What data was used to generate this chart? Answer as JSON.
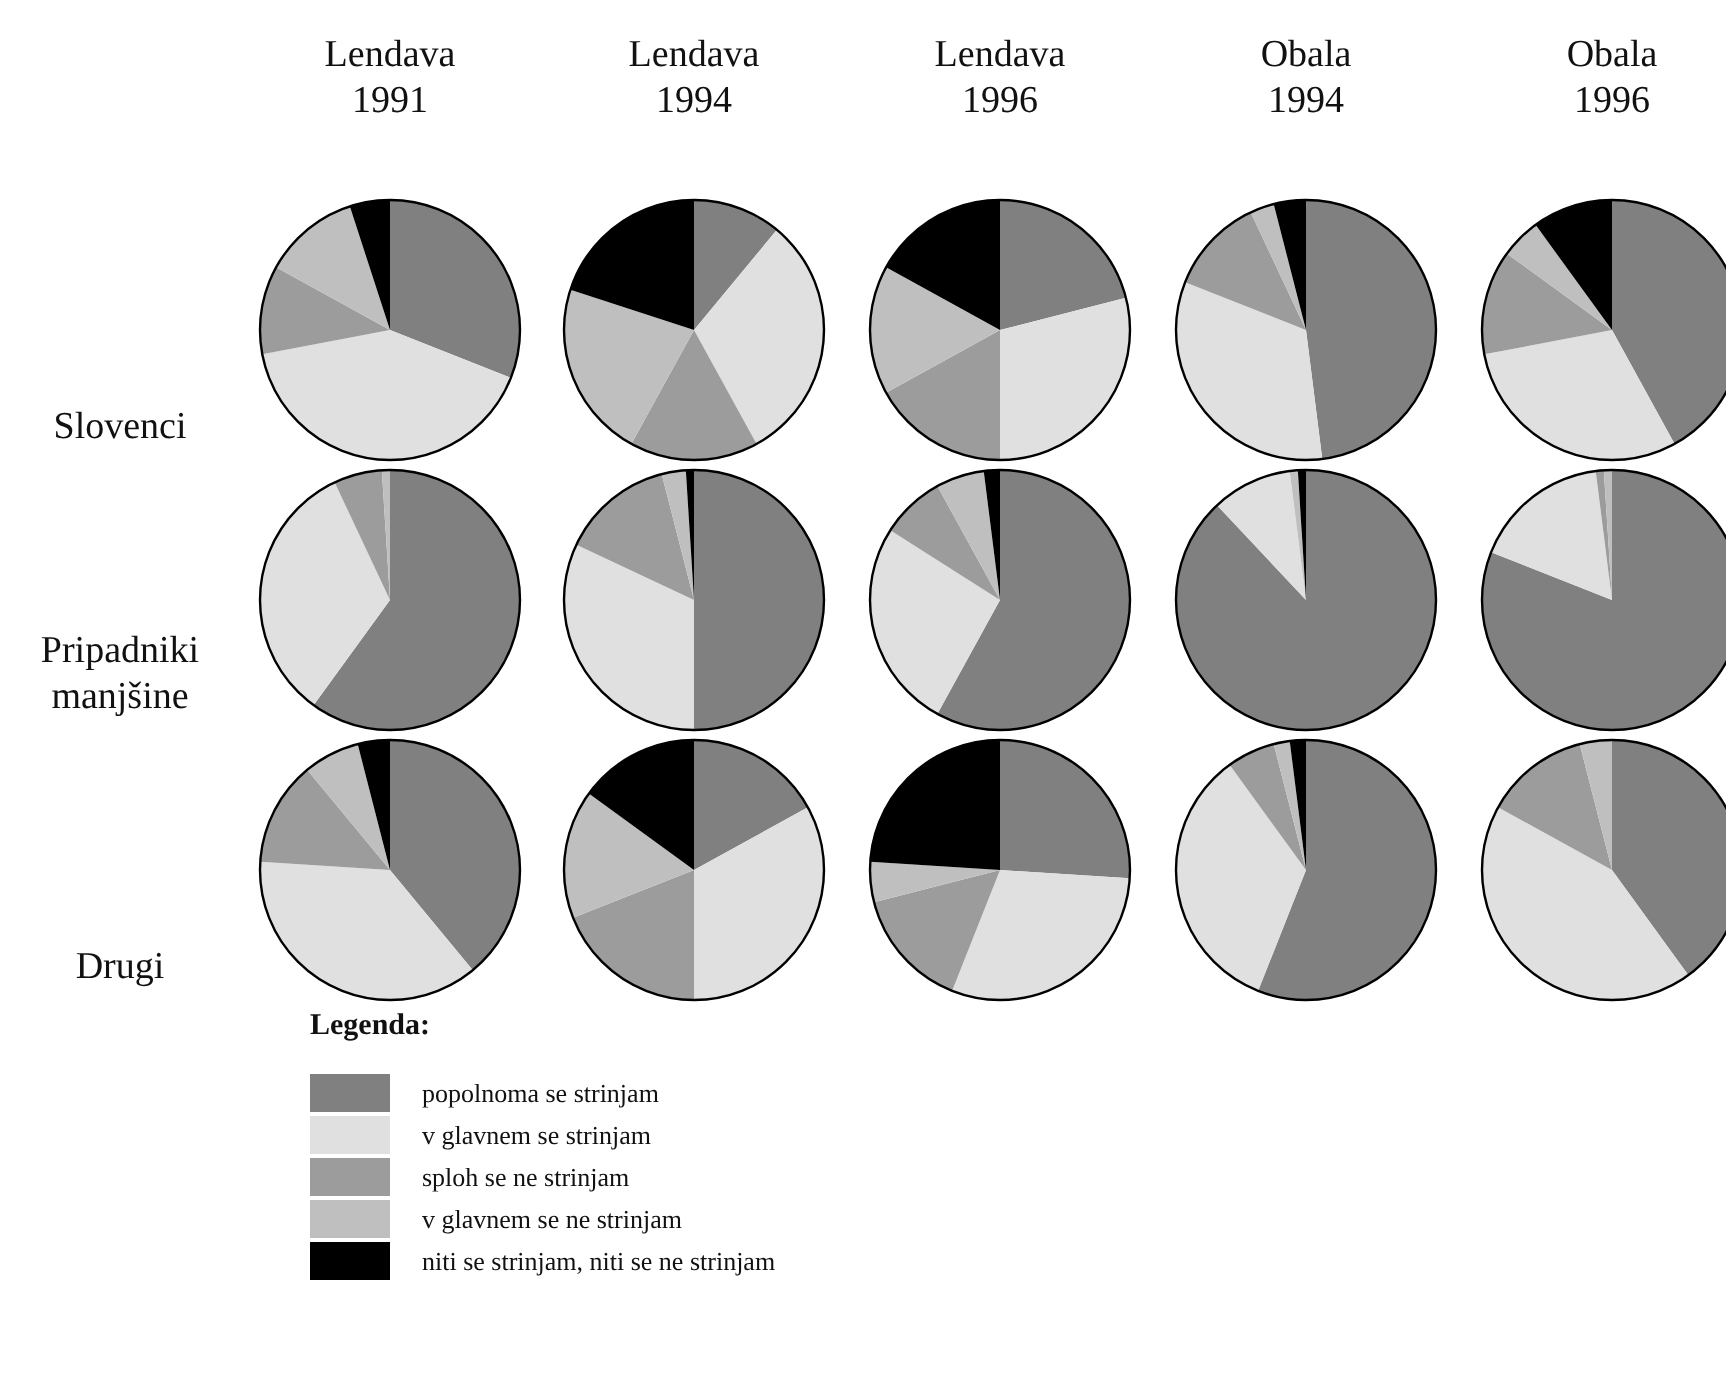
{
  "chart_data": [
    {
      "type": "pie",
      "title": "Lendava\n1991",
      "ylabel": "Slovenci",
      "legend": "bottom",
      "legend_title": "Legenda:",
      "categories": [
        "popolnoma se strinjam",
        "v glavnem se strinjam",
        "sploh se ne strinjam",
        "v glavnem se ne strinjam",
        "niti se strinjam, niti se ne strinjam"
      ],
      "values": [
        31,
        41,
        11,
        12,
        5
      ],
      "colors": [
        "#808080",
        "#e0e0e0",
        "#9c9c9c",
        "#bfbfbf",
        "#000000"
      ]
    },
    {
      "type": "pie",
      "title": "Lendava\n1994",
      "categories": [
        null,
        null,
        null,
        null,
        null
      ],
      "values": [
        11,
        31,
        16,
        22,
        20
      ],
      "colors": [
        "#808080",
        "#e0e0e0",
        "#9c9c9c",
        "#bfbfbf",
        "#000000"
      ]
    },
    {
      "type": "pie",
      "title": "Lendava\n1996",
      "categories": [
        null,
        null,
        null,
        null,
        null
      ],
      "values": [
        21,
        29,
        17,
        16,
        17
      ],
      "colors": [
        "#808080",
        "#e0e0e0",
        "#9c9c9c",
        "#bfbfbf",
        "#000000"
      ]
    },
    {
      "type": "pie",
      "title": "Obala\n1994",
      "categories": [
        null,
        null,
        null,
        null,
        null
      ],
      "values": [
        48,
        33,
        12,
        3,
        4
      ],
      "colors": [
        "#808080",
        "#e0e0e0",
        "#9c9c9c",
        "#bfbfbf",
        "#000000"
      ]
    },
    {
      "type": "pie",
      "title": "Obala\n1996",
      "categories": [
        null,
        null,
        null,
        null,
        null
      ],
      "values": [
        42,
        30,
        13,
        5,
        10
      ],
      "colors": [
        "#808080",
        "#e0e0e0",
        "#9c9c9c",
        "#bfbfbf",
        "#000000"
      ]
    },
    {
      "type": "pie",
      "ylabel": "Pripadniki\nmanjšine",
      "categories": [
        null,
        null,
        null,
        null,
        null
      ],
      "values": [
        60,
        33,
        6,
        1,
        0
      ],
      "colors": [
        "#808080",
        "#e0e0e0",
        "#9c9c9c",
        "#bfbfbf",
        "#000000"
      ]
    },
    {
      "type": "pie",
      "categories": [
        null,
        null,
        null,
        null,
        null
      ],
      "values": [
        50,
        32,
        14,
        3,
        1
      ],
      "colors": [
        "#808080",
        "#e0e0e0",
        "#9c9c9c",
        "#bfbfbf",
        "#000000"
      ]
    },
    {
      "type": "pie",
      "categories": [
        null,
        null,
        null,
        null,
        null
      ],
      "values": [
        58,
        26,
        8,
        6,
        2
      ],
      "colors": [
        "#808080",
        "#e0e0e0",
        "#9c9c9c",
        "#bfbfbf",
        "#000000"
      ]
    },
    {
      "type": "pie",
      "categories": [
        null,
        null,
        null,
        null,
        null
      ],
      "values": [
        88,
        10,
        0,
        1,
        1
      ],
      "colors": [
        "#808080",
        "#e0e0e0",
        "#9c9c9c",
        "#bfbfbf",
        "#000000"
      ]
    },
    {
      "type": "pie",
      "categories": [
        null,
        null,
        null,
        null,
        null
      ],
      "values": [
        81,
        17,
        1,
        1,
        0
      ],
      "colors": [
        "#808080",
        "#e0e0e0",
        "#9c9c9c",
        "#bfbfbf",
        "#000000"
      ]
    },
    {
      "type": "pie",
      "ylabel": "Drugi",
      "categories": [
        null,
        null,
        null,
        null,
        null
      ],
      "values": [
        39,
        37,
        13,
        7,
        4
      ],
      "colors": [
        "#808080",
        "#e0e0e0",
        "#9c9c9c",
        "#bfbfbf",
        "#000000"
      ]
    },
    {
      "type": "pie",
      "categories": [
        null,
        null,
        null,
        null,
        null
      ],
      "values": [
        17,
        33,
        19,
        16,
        15
      ],
      "colors": [
        "#808080",
        "#e0e0e0",
        "#9c9c9c",
        "#bfbfbf",
        "#000000"
      ]
    },
    {
      "type": "pie",
      "categories": [
        null,
        null,
        null,
        null,
        null
      ],
      "values": [
        26,
        30,
        15,
        5,
        24
      ],
      "colors": [
        "#808080",
        "#e0e0e0",
        "#9c9c9c",
        "#bfbfbf",
        "#000000"
      ]
    },
    {
      "type": "pie",
      "categories": [
        null,
        null,
        null,
        null,
        null
      ],
      "values": [
        56,
        34,
        6,
        2,
        2
      ],
      "colors": [
        "#808080",
        "#e0e0e0",
        "#9c9c9c",
        "#bfbfbf",
        "#000000"
      ]
    },
    {
      "type": "pie",
      "categories": [
        null,
        null,
        null,
        null,
        null
      ],
      "values": [
        40,
        43,
        13,
        4,
        0
      ],
      "colors": [
        "#808080",
        "#e0e0e0",
        "#9c9c9c",
        "#bfbfbf",
        "#000000"
      ]
    }
  ]
}
